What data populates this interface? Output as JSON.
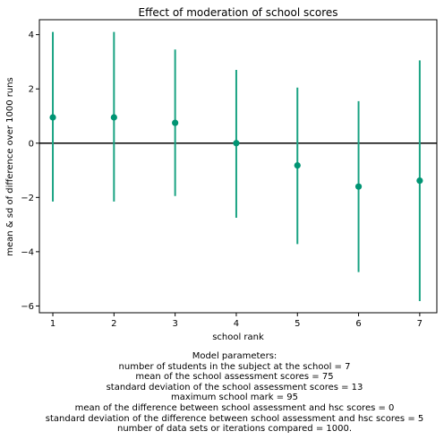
{
  "chart_data": {
    "type": "scatter",
    "title": "Effect of moderation of school scores",
    "xlabel": "school rank",
    "ylabel": "mean & sd of difference over 1000 runs",
    "x": [
      1,
      2,
      3,
      4,
      5,
      6,
      7
    ],
    "y": [
      0.95,
      0.95,
      0.75,
      0.0,
      -0.82,
      -1.6,
      -1.38
    ],
    "error_low": [
      -2.15,
      -2.15,
      -1.95,
      -2.75,
      -3.72,
      -4.75,
      -5.82
    ],
    "error_high": [
      4.1,
      4.1,
      3.45,
      2.7,
      2.05,
      1.55,
      3.05
    ],
    "xlim": [
      0.78,
      7.28
    ],
    "ylim": [
      -6.25,
      4.55
    ],
    "x_ticks": [
      1,
      2,
      3,
      4,
      5,
      6,
      7
    ],
    "y_ticks": [
      4,
      2,
      0,
      -2,
      -4,
      -6
    ],
    "y_tick_labels": [
      "4",
      "2",
      "0",
      "−2",
      "−4",
      "−6"
    ],
    "reference_line_y": 0,
    "grid": false,
    "marker_color": "#009473",
    "errorbar_color": "#1aa383",
    "reference_line_color": "#000000"
  },
  "caption": {
    "lines": [
      "Model parameters:",
      "number of students in the subject at the school = 7",
      "mean of the school assessment scores = 75",
      "standard deviation of the school assessment scores = 13",
      "maximum school mark = 95",
      "mean of the difference between school assessment and hsc scores = 0",
      "standard deviation of the difference between school assessment and hsc scores = 5",
      "number of data sets or iterations compared = 1000."
    ]
  }
}
